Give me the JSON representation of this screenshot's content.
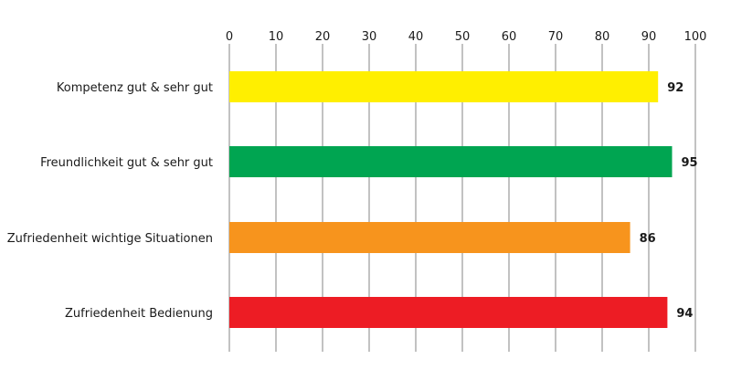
{
  "chart_data": {
    "type": "bar",
    "orientation": "horizontal",
    "categories": [
      "Kompetenz gut & sehr gut",
      "Freundlichkeit gut & sehr gut",
      "Zufriedenheit wichtige Situationen",
      "Zufriedenheit Bedienung"
    ],
    "values": [
      92,
      95,
      86,
      94
    ],
    "value_labels": [
      "92",
      "95",
      "86",
      "94"
    ],
    "colors": [
      "#FFEF00",
      "#00A551",
      "#F7941D",
      "#ED1C24"
    ],
    "xlim": [
      0,
      100
    ],
    "ticks": [
      0,
      10,
      20,
      30,
      40,
      50,
      60,
      70,
      80,
      90,
      100
    ],
    "tick_labels": [
      "0",
      "10",
      "20",
      "30",
      "40",
      "50",
      "60",
      "70",
      "80",
      "90",
      "100"
    ],
    "tick_position": "top",
    "grid": true,
    "legend": "none"
  }
}
